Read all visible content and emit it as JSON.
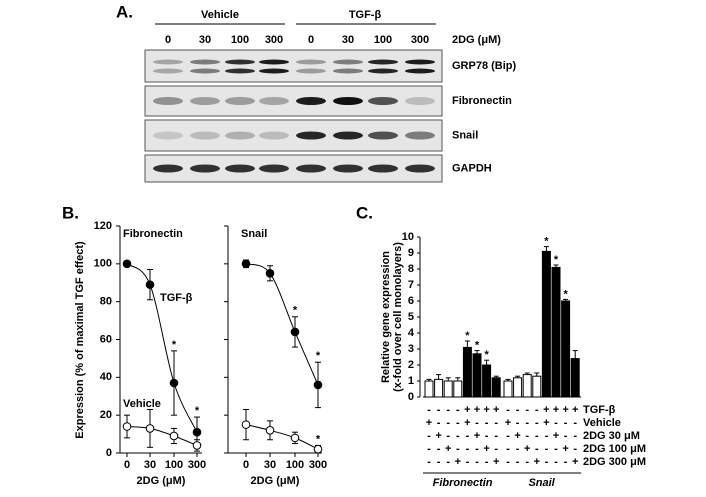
{
  "panels": {
    "a": {
      "label": "A.",
      "groups": [
        "Vehicle",
        "TGF-β"
      ],
      "lanes": [
        "0",
        "30",
        "100",
        "300",
        "0",
        "30",
        "100",
        "300"
      ],
      "treatment_label": "2DG (μM)",
      "blots": [
        "GRP78 (Bip)",
        "Fibronectin",
        "Snail",
        "GAPDH"
      ]
    },
    "b": {
      "label": "B."
    },
    "c": {
      "label": "C."
    }
  },
  "chart_data": [
    {
      "type": "line",
      "title": "Fibronectin",
      "xlabel": "2DG (μM)",
      "ylabel": "Expression (% of maximal TGF effect)",
      "categories": [
        "0",
        "30",
        "100",
        "300"
      ],
      "ylim": [
        0,
        120
      ],
      "yticks": [
        0,
        20,
        40,
        60,
        80,
        100,
        120
      ],
      "series": [
        {
          "name": "TGF-β",
          "color": "#000000",
          "marker": "filled",
          "values": [
            100,
            89,
            37,
            11
          ],
          "errors": [
            0,
            8,
            17,
            8
          ],
          "stars": [
            null,
            null,
            "*",
            "*"
          ]
        },
        {
          "name": "Vehicle",
          "color": "#000000",
          "marker": "open",
          "values": [
            14,
            13,
            9,
            4
          ],
          "errors": [
            6,
            10,
            4,
            3
          ]
        }
      ]
    },
    {
      "type": "line",
      "title": "Snail",
      "xlabel": "2DG (μM)",
      "categories": [
        "0",
        "30",
        "100",
        "300"
      ],
      "ylim": [
        0,
        120
      ],
      "yticks": [
        0,
        20,
        40,
        60,
        80,
        100,
        120
      ],
      "series": [
        {
          "color": "#000000",
          "marker": "filled",
          "values": [
            100,
            95,
            64,
            36
          ],
          "errors": [
            2,
            4,
            8,
            12
          ],
          "stars": [
            null,
            null,
            "*",
            "*"
          ]
        },
        {
          "color": "#000000",
          "marker": "open",
          "values": [
            15,
            12,
            8,
            2
          ],
          "errors": [
            8,
            5,
            3,
            2
          ],
          "stars": [
            null,
            null,
            null,
            "*"
          ]
        }
      ]
    },
    {
      "type": "bar",
      "ylabel": [
        "Relative gene expression",
        "(x-fold over cell monolayers)"
      ],
      "ylim": [
        0,
        10
      ],
      "yticks": [
        0,
        1,
        2,
        3,
        4,
        5,
        6,
        7,
        8,
        9,
        10
      ],
      "bar_colors": [
        "#ffffff",
        "#ffffff",
        "#ffffff",
        "#ffffff",
        "#000000",
        "#000000",
        "#000000",
        "#000000"
      ],
      "series": [
        {
          "name": "Fibronectin",
          "values": [
            1.0,
            1.1,
            1.0,
            1.0,
            3.1,
            2.7,
            2.0,
            1.2
          ],
          "errors": [
            0.1,
            0.3,
            0.2,
            0.2,
            0.4,
            0.2,
            0.3,
            0.1
          ],
          "stars": [
            null,
            null,
            null,
            null,
            "*",
            "*",
            "*",
            null
          ]
        },
        {
          "name": "Snail",
          "values": [
            1.0,
            1.2,
            1.4,
            1.3,
            9.1,
            8.1,
            6.0,
            2.4
          ],
          "errors": [
            0.1,
            0.1,
            0.1,
            0.2,
            0.3,
            0.15,
            0.1,
            0.5
          ],
          "stars": [
            null,
            null,
            null,
            null,
            "*",
            "*",
            "*",
            null
          ]
        }
      ],
      "conditions": [
        {
          "label": "TGF-β",
          "signs": [
            "-",
            "-",
            "-",
            "-",
            "+",
            "+",
            "+",
            "+"
          ]
        },
        {
          "label": "Vehicle",
          "signs": [
            "+",
            "-",
            "-",
            "-",
            "+",
            "-",
            "-",
            "-"
          ]
        },
        {
          "label": "2DG 30 μM",
          "signs": [
            "-",
            "+",
            "-",
            "-",
            "-",
            "+",
            "-",
            "-"
          ]
        },
        {
          "label": "2DG 100 μM",
          "signs": [
            "-",
            "-",
            "+",
            "-",
            "-",
            "-",
            "+",
            "-"
          ]
        },
        {
          "label": "2DG 300 μM",
          "signs": [
            "-",
            "-",
            "-",
            "+",
            "-",
            "-",
            "-",
            "+"
          ]
        }
      ]
    }
  ]
}
